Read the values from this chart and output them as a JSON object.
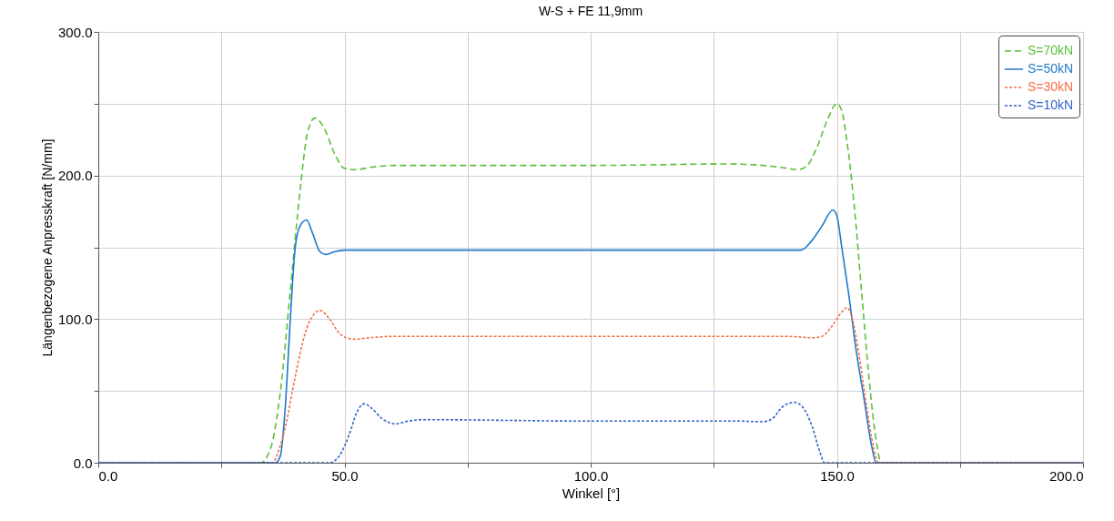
{
  "chart_data": {
    "type": "line",
    "title": "W-S + FE 11,9mm",
    "xlabel": "Winkel [°]",
    "ylabel": "Längenbezogene Anpresskraft [N/mm]",
    "xlim": [
      0,
      200
    ],
    "ylim": [
      0,
      300
    ],
    "xticks": [
      {
        "value": 0,
        "label": "0.0"
      },
      {
        "value": 25,
        "label": null
      },
      {
        "value": 50,
        "label": "50.0"
      },
      {
        "value": 75,
        "label": null
      },
      {
        "value": 100,
        "label": "100.0"
      },
      {
        "value": 125,
        "label": null
      },
      {
        "value": 150,
        "label": "150.0"
      },
      {
        "value": 175,
        "label": null
      },
      {
        "value": 200,
        "label": "200.0"
      }
    ],
    "yticks": [
      {
        "value": 0,
        "label": "0.0"
      },
      {
        "value": 50,
        "label": null
      },
      {
        "value": 100,
        "label": "100.0"
      },
      {
        "value": 150,
        "label": null
      },
      {
        "value": 200,
        "label": "200.0"
      },
      {
        "value": 250,
        "label": null
      },
      {
        "value": 300,
        "label": "300.0"
      }
    ],
    "grid": true,
    "legend": "top right",
    "marker": "none",
    "series": [
      {
        "name": "S=70kN",
        "color": "#5cbf3a",
        "line_style": "dashed",
        "x": [
          0,
          33,
          35,
          37,
          39,
          41,
          42.5,
          44,
          46,
          48,
          50,
          52,
          56,
          60,
          100,
          128,
          135,
          140,
          142,
          144,
          146,
          148,
          150,
          151,
          152,
          153.5,
          155,
          156.5,
          158,
          159,
          200
        ],
        "values": [
          0,
          0,
          10,
          50,
          120,
          190,
          230,
          240,
          232,
          215,
          205,
          204,
          206,
          207,
          207,
          208,
          207,
          205,
          204,
          207,
          220,
          238,
          250,
          245,
          225,
          180,
          120,
          60,
          15,
          0,
          0
        ]
      },
      {
        "name": "S=50kN",
        "color": "#1f78c8",
        "line_style": "solid",
        "x": [
          0,
          36,
          37,
          38,
          39,
          40,
          41,
          42.3,
          43.5,
          45,
          46.2,
          48,
          50,
          100,
          140,
          142.7,
          145,
          147,
          149.2,
          150,
          151,
          152.5,
          153.8,
          155.5,
          157.1,
          158,
          200
        ],
        "values": [
          0,
          0,
          5,
          40,
          100,
          150,
          165,
          169,
          160,
          147,
          145,
          147,
          148,
          148,
          148,
          148,
          155,
          165,
          176,
          172,
          150,
          115,
          81,
          45,
          11,
          0,
          0
        ]
      },
      {
        "name": "S=30kN",
        "color": "#f46d43",
        "line_style": "dotted",
        "x": [
          0,
          35.5,
          36,
          38,
          40,
          42,
          43.5,
          45,
          47,
          49,
          51.8,
          55,
          60,
          140,
          145,
          147,
          149,
          151,
          152,
          153,
          154.5,
          156,
          157.5,
          158.4,
          200
        ],
        "values": [
          0,
          0,
          3,
          25,
          60,
          90,
          102,
          106,
          100,
          90,
          86,
          87,
          88,
          88,
          87,
          88,
          95,
          105,
          108,
          102,
          75,
          40,
          10,
          0,
          0
        ]
      },
      {
        "name": "S=10kN",
        "color": "#3060c8",
        "line_style": "dotted",
        "x": [
          0,
          47,
          49,
          51,
          52.5,
          54,
          55.5,
          57.5,
          60.4,
          63,
          66,
          100,
          130,
          135,
          137,
          139,
          141.4,
          143,
          145,
          146.5,
          147.5,
          200
        ],
        "values": [
          0,
          0,
          5,
          20,
          35,
          41,
          38,
          31,
          27,
          29,
          30,
          29,
          29,
          28.5,
          31,
          39,
          42,
          39,
          25,
          8,
          0,
          0
        ]
      }
    ]
  }
}
